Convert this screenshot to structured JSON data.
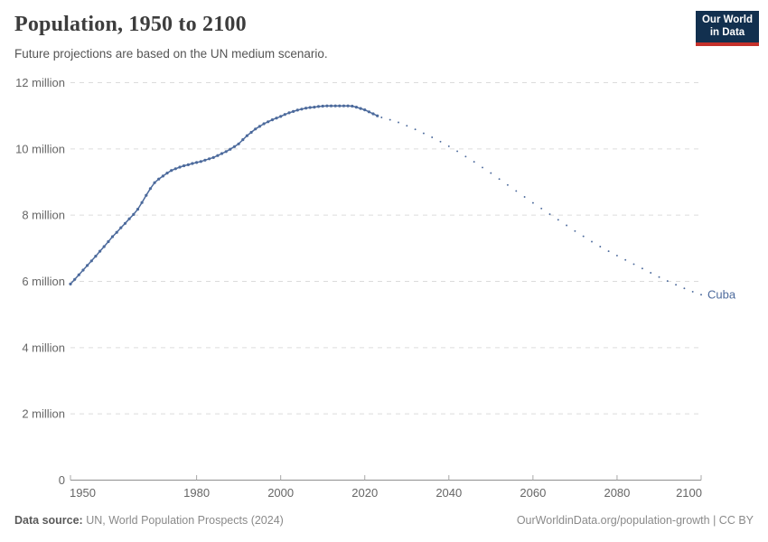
{
  "header": {
    "title": "Population, 1950 to 2100",
    "subtitle": "Future projections are based on the UN medium scenario."
  },
  "logo": {
    "line1": "Our World",
    "line2": "in Data",
    "bg_color": "#12304f",
    "accent_color": "#c5312b"
  },
  "footer": {
    "source_label": "Data source:",
    "source_text": " UN, World Population Prospects (2024)",
    "right_text": "OurWorldinData.org/population-growth | CC BY"
  },
  "chart_data": {
    "type": "line",
    "title": "Population, 1950 to 2100",
    "subtitle": "Future projections are based on the UN medium scenario.",
    "entity_label": "Cuba",
    "value_unit": "million people",
    "xlim": [
      1950,
      2100
    ],
    "ylim": [
      0,
      12
    ],
    "grid": "horizontal-dashed",
    "legend_position": "end-of-line-label",
    "x_ticks": [
      1950,
      1980,
      2000,
      2020,
      2040,
      2060,
      2080,
      2100
    ],
    "y_ticks": [
      {
        "value": 0,
        "label": "0"
      },
      {
        "value": 2,
        "label": "2 million"
      },
      {
        "value": 4,
        "label": "4 million"
      },
      {
        "value": 6,
        "label": "6 million"
      },
      {
        "value": 8,
        "label": "8 million"
      },
      {
        "value": 10,
        "label": "10 million"
      },
      {
        "value": 12,
        "label": "12 million"
      }
    ],
    "series": [
      {
        "name": "Cuba — historical estimates",
        "style": "solid-line-with-yearly-markers",
        "color": "#4C6A9C",
        "points": [
          [
            1950,
            5.92
          ],
          [
            1951,
            6.06
          ],
          [
            1952,
            6.2
          ],
          [
            1953,
            6.34
          ],
          [
            1954,
            6.48
          ],
          [
            1955,
            6.62
          ],
          [
            1956,
            6.76
          ],
          [
            1957,
            6.91
          ],
          [
            1958,
            7.05
          ],
          [
            1959,
            7.2
          ],
          [
            1960,
            7.35
          ],
          [
            1961,
            7.48
          ],
          [
            1962,
            7.62
          ],
          [
            1963,
            7.75
          ],
          [
            1964,
            7.89
          ],
          [
            1965,
            8.02
          ],
          [
            1966,
            8.18
          ],
          [
            1967,
            8.38
          ],
          [
            1968,
            8.6
          ],
          [
            1969,
            8.8
          ],
          [
            1970,
            8.98
          ],
          [
            1971,
            9.09
          ],
          [
            1972,
            9.18
          ],
          [
            1973,
            9.27
          ],
          [
            1974,
            9.35
          ],
          [
            1975,
            9.4
          ],
          [
            1976,
            9.45
          ],
          [
            1977,
            9.49
          ],
          [
            1978,
            9.52
          ],
          [
            1979,
            9.56
          ],
          [
            1980,
            9.59
          ],
          [
            1981,
            9.62
          ],
          [
            1982,
            9.66
          ],
          [
            1983,
            9.7
          ],
          [
            1984,
            9.74
          ],
          [
            1985,
            9.8
          ],
          [
            1986,
            9.86
          ],
          [
            1987,
            9.92
          ],
          [
            1988,
            9.99
          ],
          [
            1989,
            10.07
          ],
          [
            1990,
            10.15
          ],
          [
            1991,
            10.28
          ],
          [
            1992,
            10.4
          ],
          [
            1993,
            10.5
          ],
          [
            1994,
            10.6
          ],
          [
            1995,
            10.68
          ],
          [
            1996,
            10.76
          ],
          [
            1997,
            10.82
          ],
          [
            1998,
            10.88
          ],
          [
            1999,
            10.93
          ],
          [
            2000,
            10.98
          ],
          [
            2001,
            11.04
          ],
          [
            2002,
            11.09
          ],
          [
            2003,
            11.13
          ],
          [
            2004,
            11.17
          ],
          [
            2005,
            11.2
          ],
          [
            2006,
            11.23
          ],
          [
            2007,
            11.25
          ],
          [
            2008,
            11.26
          ],
          [
            2009,
            11.28
          ],
          [
            2010,
            11.29
          ],
          [
            2011,
            11.3
          ],
          [
            2012,
            11.3
          ],
          [
            2013,
            11.3
          ],
          [
            2014,
            11.3
          ],
          [
            2015,
            11.3
          ],
          [
            2016,
            11.3
          ],
          [
            2017,
            11.29
          ],
          [
            2018,
            11.26
          ],
          [
            2019,
            11.22
          ],
          [
            2020,
            11.18
          ],
          [
            2021,
            11.12
          ],
          [
            2022,
            11.06
          ],
          [
            2023,
            11.0
          ]
        ]
      },
      {
        "name": "Cuba — UN medium scenario projection",
        "style": "dotted",
        "color": "#4C6A9C",
        "points": [
          [
            2024,
            10.95
          ],
          [
            2026,
            10.88
          ],
          [
            2028,
            10.8
          ],
          [
            2030,
            10.7
          ],
          [
            2032,
            10.59
          ],
          [
            2034,
            10.47
          ],
          [
            2036,
            10.35
          ],
          [
            2038,
            10.22
          ],
          [
            2040,
            10.08
          ],
          [
            2042,
            9.93
          ],
          [
            2044,
            9.77
          ],
          [
            2046,
            9.61
          ],
          [
            2048,
            9.44
          ],
          [
            2050,
            9.27
          ],
          [
            2052,
            9.09
          ],
          [
            2054,
            8.91
          ],
          [
            2056,
            8.73
          ],
          [
            2058,
            8.55
          ],
          [
            2060,
            8.37
          ],
          [
            2062,
            8.2
          ],
          [
            2064,
            8.03
          ],
          [
            2066,
            7.86
          ],
          [
            2068,
            7.69
          ],
          [
            2070,
            7.52
          ],
          [
            2072,
            7.36
          ],
          [
            2074,
            7.2
          ],
          [
            2076,
            7.05
          ],
          [
            2078,
            6.91
          ],
          [
            2080,
            6.78
          ],
          [
            2082,
            6.65
          ],
          [
            2084,
            6.52
          ],
          [
            2086,
            6.39
          ],
          [
            2088,
            6.26
          ],
          [
            2090,
            6.13
          ],
          [
            2092,
            6.01
          ],
          [
            2094,
            5.9
          ],
          [
            2096,
            5.79
          ],
          [
            2098,
            5.69
          ],
          [
            2100,
            5.6
          ]
        ]
      }
    ],
    "colors": {
      "series": "#4C6A9C",
      "entity_label": "#4C6A9C",
      "gridline": "#dcdcdc",
      "axis_line": "#8f8f8f",
      "tick_label": "#666666"
    }
  }
}
